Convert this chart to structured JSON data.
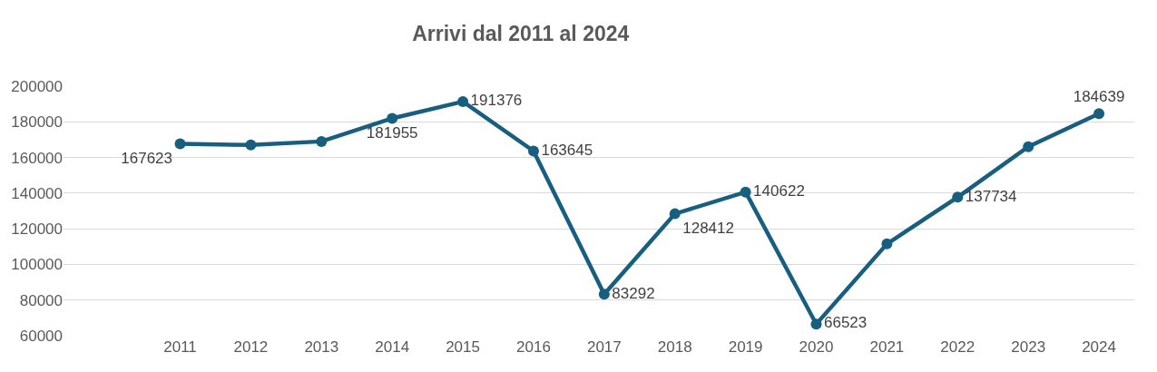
{
  "chart_data": {
    "type": "line",
    "title": "Arrivi dal 2011 al 2024",
    "categories": [
      "2011",
      "2012",
      "2013",
      "2014",
      "2015",
      "2016",
      "2017",
      "2018",
      "2019",
      "2020",
      "2021",
      "2022",
      "2023",
      "2024"
    ],
    "series": [
      {
        "color": "#175e80",
        "values": [
          167623,
          167000,
          169000,
          181955,
          191376,
          163645,
          83292,
          128412,
          140622,
          66523,
          111500,
          137734,
          166000,
          184639
        ],
        "value_labels": [
          "167623",
          null,
          null,
          "181955",
          "191376",
          "163645",
          "83292",
          "128412",
          "140622",
          "66523",
          null,
          "137734",
          null,
          "184639"
        ]
      }
    ],
    "ylim": [
      60000,
      200000
    ],
    "yticks": [
      60000,
      80000,
      100000,
      120000,
      140000,
      160000,
      180000,
      200000
    ],
    "grid": "y",
    "legend": false,
    "marker": "circle",
    "line_style": "solid"
  }
}
